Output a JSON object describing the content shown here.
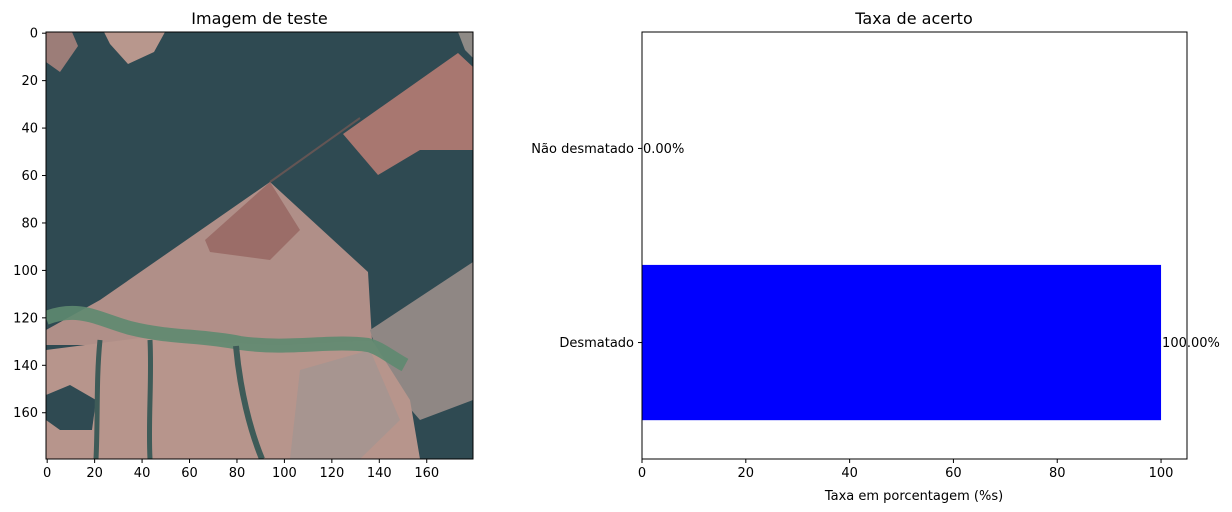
{
  "chart_data": [
    {
      "type": "image",
      "title": "Imagem de teste",
      "xticks": [
        0,
        20,
        40,
        60,
        80,
        100,
        120,
        140,
        160
      ],
      "yticks": [
        0,
        20,
        40,
        60,
        80,
        100,
        120,
        140,
        160
      ],
      "xlim": [
        -0.5,
        179.5
      ],
      "ylim": [
        179.5,
        -0.5
      ],
      "colors": {
        "forest": "#2f4a52",
        "forest_dark": "#2a4249",
        "field": "#b18e86",
        "field_light": "#c19e94",
        "field_red": "#a8716a",
        "field_gray": "#8d8a88",
        "river": "#567b66",
        "river_light": "#7fa08a"
      }
    },
    {
      "type": "bar",
      "orientation": "horizontal",
      "title": "Taxa de acerto",
      "categories": [
        "Desmatado",
        "Não desmatado"
      ],
      "values": [
        100.0,
        0.0
      ],
      "value_labels": [
        "100.00%",
        "0.00%"
      ],
      "xlabel": "Taxa em porcentagem (%s)",
      "ylabel": "",
      "xlim": [
        0,
        105
      ],
      "xticks": [
        0,
        20,
        40,
        60,
        80,
        100
      ],
      "bar_color": "#0000ff"
    }
  ]
}
